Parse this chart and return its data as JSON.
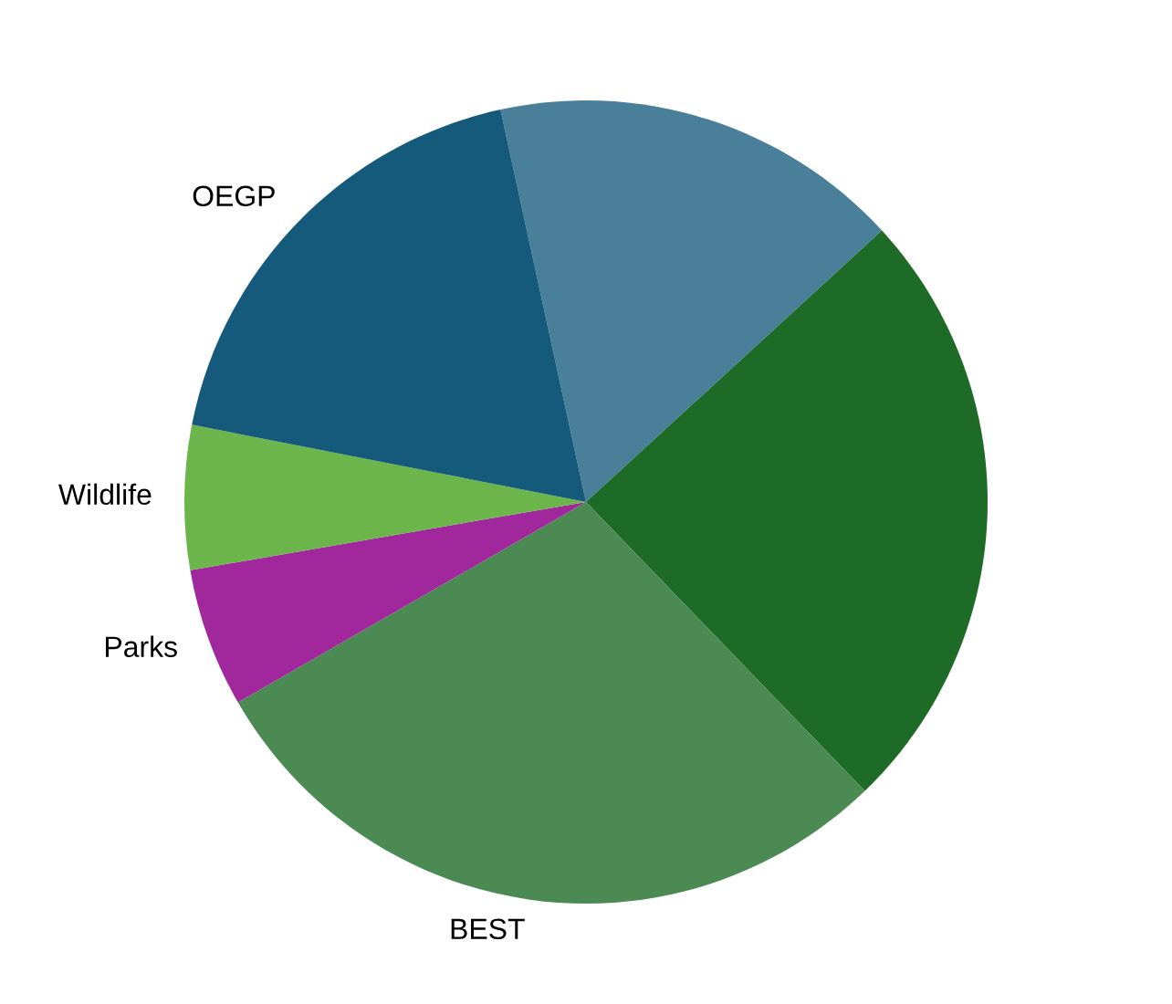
{
  "chart_data": {
    "type": "pie",
    "categories": [
      null,
      null,
      "BEST",
      "Parks",
      "Wildlife",
      "OEGP"
    ],
    "values": [
      16.6,
      24.6,
      28.9,
      5.6,
      5.8,
      18.5
    ],
    "colors": [
      "#4a7f99",
      "#1e6b27",
      "#4b8a52",
      "#a0289c",
      "#6cb54a",
      "#155a7a"
    ],
    "legend": false
  }
}
